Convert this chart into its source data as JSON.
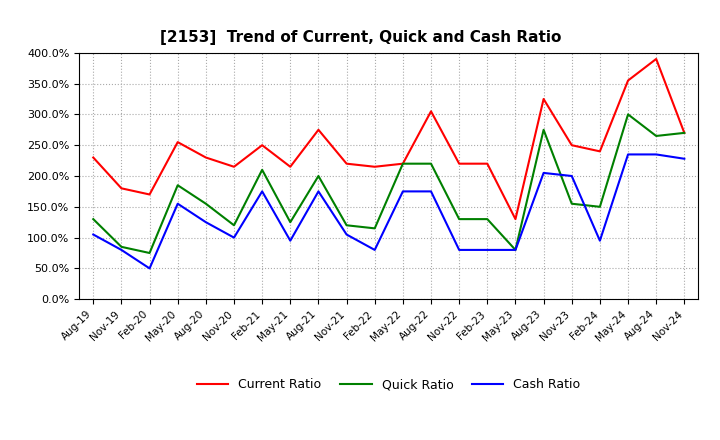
{
  "title": "[2153]  Trend of Current, Quick and Cash Ratio",
  "x_labels": [
    "Aug-19",
    "Nov-19",
    "Feb-20",
    "May-20",
    "Aug-20",
    "Nov-20",
    "Feb-21",
    "May-21",
    "Aug-21",
    "Nov-21",
    "Feb-22",
    "May-22",
    "Aug-22",
    "Nov-22",
    "Feb-23",
    "May-23",
    "Aug-23",
    "Nov-23",
    "Feb-24",
    "May-24",
    "Aug-24",
    "Nov-24"
  ],
  "current_ratio": [
    230,
    180,
    170,
    255,
    230,
    215,
    250,
    215,
    275,
    220,
    215,
    220,
    305,
    220,
    220,
    130,
    325,
    250,
    240,
    355,
    390,
    270
  ],
  "quick_ratio": [
    130,
    85,
    75,
    185,
    155,
    120,
    210,
    125,
    200,
    120,
    115,
    220,
    220,
    130,
    130,
    80,
    275,
    155,
    150,
    300,
    265,
    270
  ],
  "cash_ratio": [
    105,
    80,
    50,
    155,
    125,
    100,
    175,
    95,
    175,
    105,
    80,
    175,
    175,
    80,
    80,
    80,
    205,
    200,
    95,
    235,
    235,
    228
  ],
  "current_color": "#ff0000",
  "quick_color": "#008000",
  "cash_color": "#0000ff",
  "ylim": [
    0,
    400
  ],
  "yticks": [
    0,
    50,
    100,
    150,
    200,
    250,
    300,
    350,
    400
  ],
  "legend_labels": [
    "Current Ratio",
    "Quick Ratio",
    "Cash Ratio"
  ]
}
